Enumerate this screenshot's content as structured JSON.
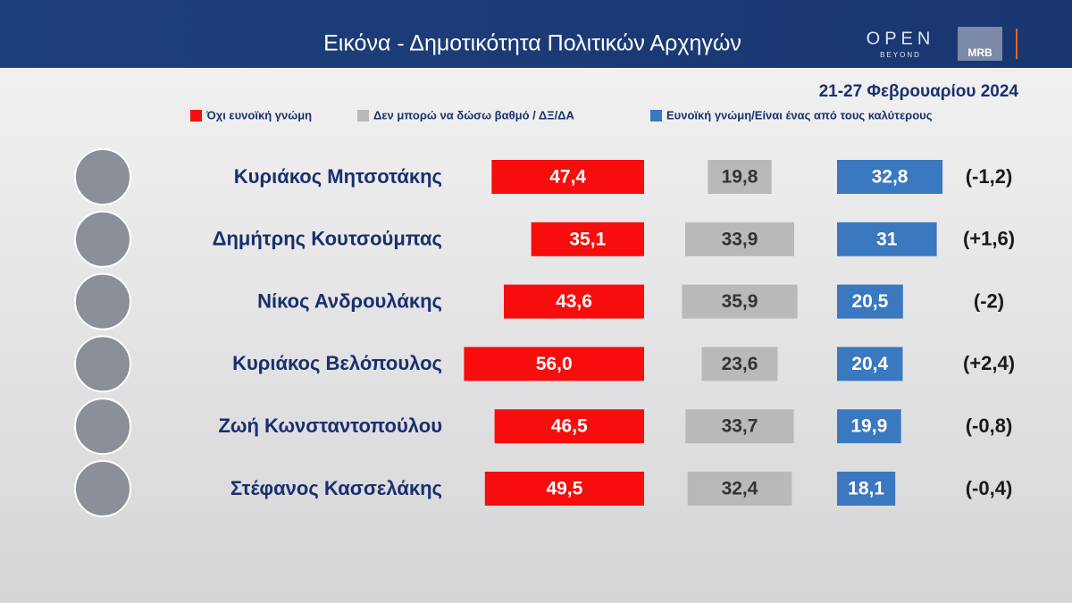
{
  "chart_data": {
    "type": "bar",
    "title": "Εικόνα - Δημοτικότητα Πολιτικών Αρχηγών",
    "subtitle": "21-27 Φεβρουαρίου 2024",
    "brand": {
      "main": "OPEN",
      "sub": "BEYOND",
      "partner": "MRB"
    },
    "categories": [
      "Κυριάκος Μητσοτάκης",
      "Δημήτρης Κουτσούμπας",
      "Νίκος Ανδρουλάκης",
      "Κυριάκος Βελόπουλος",
      "Ζωή Κωνσταντοπούλου",
      "Στέφανος Κασσελάκης"
    ],
    "series": [
      {
        "name": "Όχι ευνοϊκή γνώμη",
        "color": "#f70d0d",
        "values": [
          47.4,
          35.1,
          43.6,
          56.0,
          46.5,
          49.5
        ],
        "value_labels": [
          "47,4",
          "35,1",
          "43,6",
          "56,0",
          "46,5",
          "49,5"
        ]
      },
      {
        "name": "Δεν μπορώ να δώσω βαθμό / ΔΞ/ΔΑ",
        "color": "#b9b9b9",
        "values": [
          19.8,
          33.9,
          35.9,
          23.6,
          33.7,
          32.4
        ],
        "value_labels": [
          "19,8",
          "33,9",
          "35,9",
          "23,6",
          "33,7",
          "32,4"
        ]
      },
      {
        "name": "Ευνοϊκή γνώμη/Είναι ένας από τους καλύτερους",
        "color": "#3a78c0",
        "values": [
          32.8,
          31,
          20.5,
          20.4,
          19.9,
          18.1
        ],
        "value_labels": [
          "32,8",
          "31",
          "20,5",
          "20,4",
          "19,9",
          "18,1"
        ]
      }
    ],
    "changes": {
      "values": [
        -1.2,
        1.6,
        -2,
        2.4,
        -0.8,
        -0.4
      ],
      "labels": [
        "(-1,2)",
        "(+1,6)",
        "(-2)",
        "(+2,4)",
        "(-0,8)",
        "(-0,4)"
      ]
    }
  }
}
